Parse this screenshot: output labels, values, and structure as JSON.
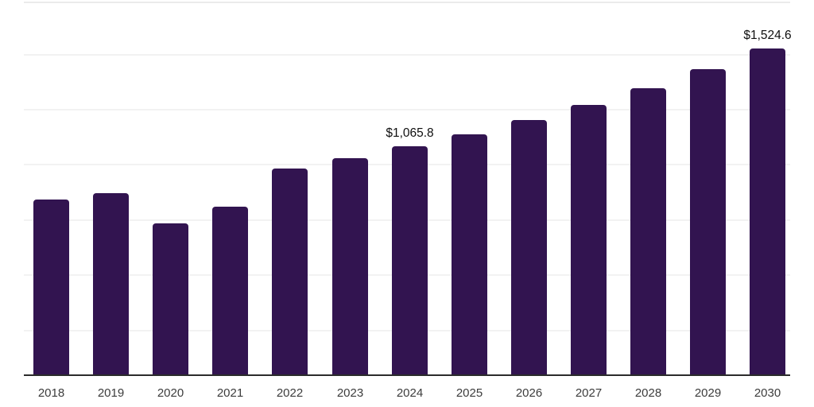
{
  "chart_data": {
    "type": "bar",
    "title": "",
    "xlabel": "",
    "ylabel": "",
    "legend": "none",
    "grid": "horizontal-only",
    "categories": [
      "2018",
      "2019",
      "2020",
      "2021",
      "2022",
      "2023",
      "2024",
      "2025",
      "2026",
      "2027",
      "2028",
      "2029",
      "2030"
    ],
    "values": [
      817,
      847,
      706,
      784,
      962,
      1010,
      1065.8,
      1122,
      1189,
      1259,
      1337,
      1427,
      1524.6
    ],
    "value_labels": [
      "",
      "",
      "",
      "",
      "",
      "",
      "$1,065.8",
      "",
      "",
      "",
      "",
      "",
      "$1,524.6"
    ],
    "ylim": [
      0,
      1750
    ],
    "bar_color": "#321450",
    "axis_line_color": "#2b2b2b",
    "gridline_color": "#f2f2f2",
    "tick_label_color": "#3c3c3c",
    "value_label_color": "#0f0f0f"
  }
}
